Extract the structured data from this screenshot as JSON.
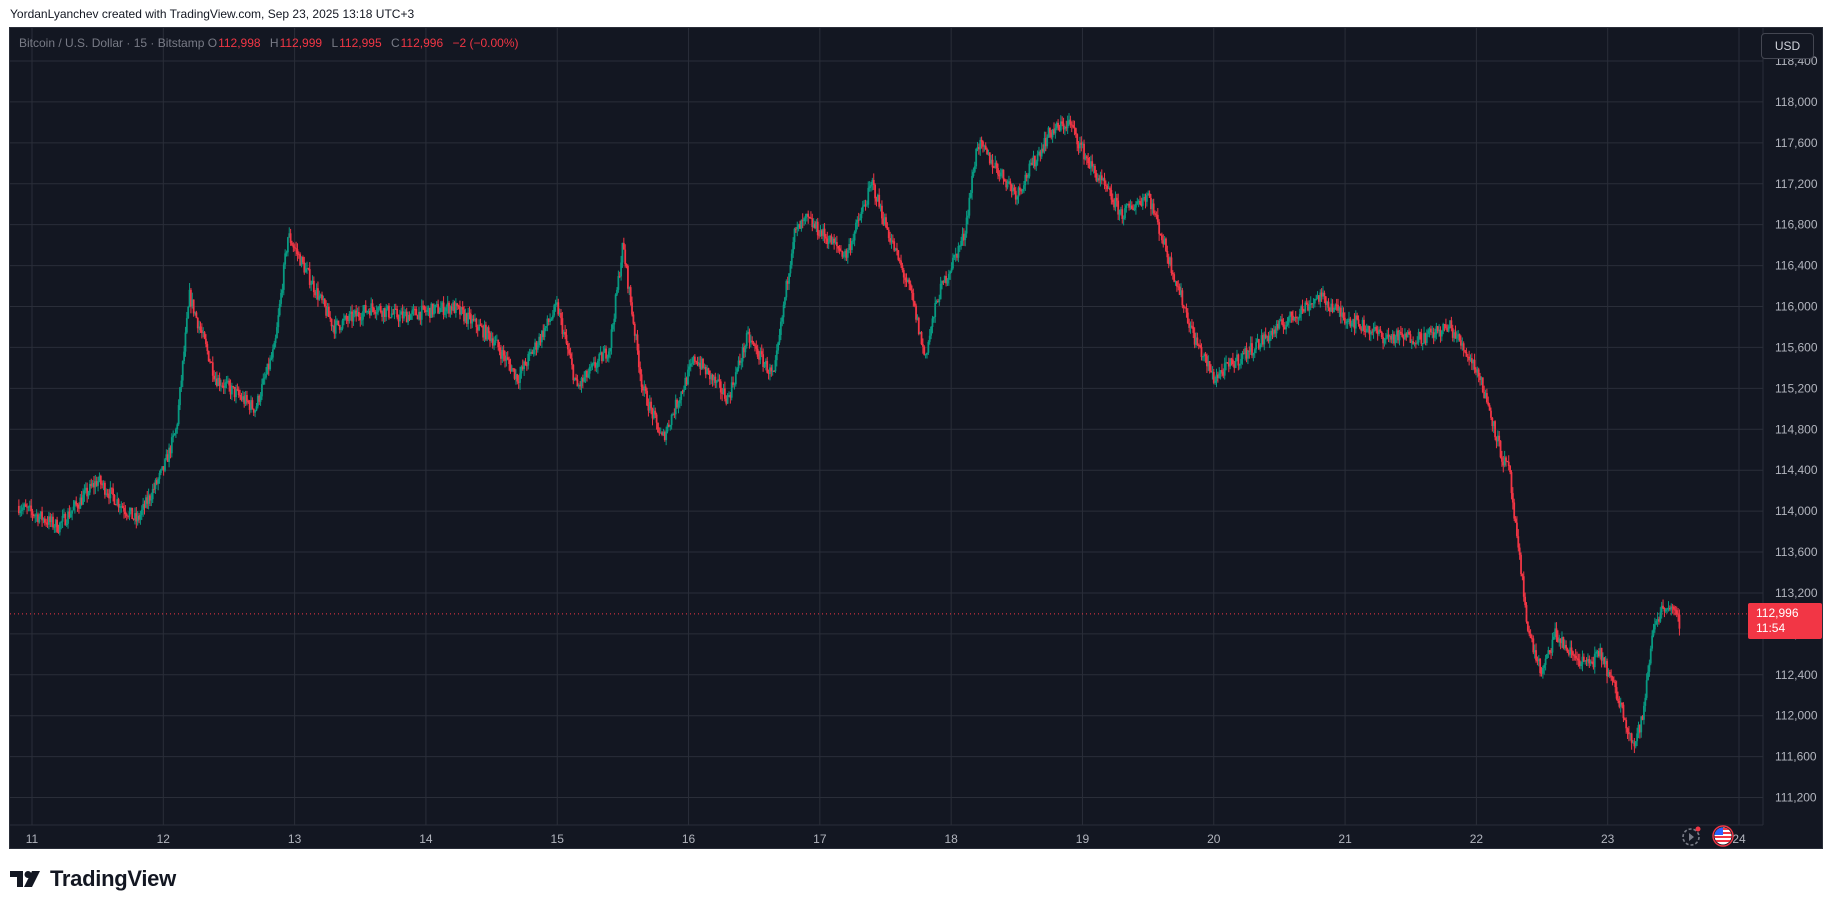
{
  "header": {
    "credit": "YordanLyanchev created with TradingView.com, Sep 23, 2025 13:18 UTC+3"
  },
  "legend": {
    "symbol": "Bitcoin / U.S. Dollar · 15 · Bitstamp",
    "o_label": "O",
    "o_value": "112,998",
    "h_label": "H",
    "h_value": "112,999",
    "l_label": "L",
    "l_value": "112,995",
    "c_label": "C",
    "c_value": "112,996",
    "change": "−2 (−0.00%)"
  },
  "currency": "USD",
  "price_tag": {
    "price": "112,996",
    "countdown": "11:54"
  },
  "brand": "TradingView",
  "icons": [
    "replay-icon",
    "us-flag-icon",
    "tv-logo-icon"
  ],
  "colors": {
    "up": "#089981",
    "down": "#f23645",
    "background": "#131722",
    "grid": "#2a2e39"
  },
  "chart_data": {
    "type": "candlestick",
    "ylim": [
      111000,
      118400
    ],
    "y_ticks": [
      111200,
      111600,
      112000,
      112400,
      112800,
      113200,
      113600,
      114000,
      114400,
      114800,
      115200,
      115600,
      116000,
      116400,
      116800,
      117200,
      117600,
      118000,
      118400
    ],
    "y_tick_labels": [
      "111,200",
      "111,600",
      "112,000",
      "112,400",
      "112,800",
      "113,200",
      "113,600",
      "114,000",
      "114,400",
      "114,800",
      "115,200",
      "115,600",
      "116,000",
      "116,400",
      "116,800",
      "117,200",
      "117,600",
      "118,000",
      "118,400"
    ],
    "x_ticks": [
      "11",
      "12",
      "13",
      "14",
      "15",
      "16",
      "17",
      "18",
      "19",
      "20",
      "21",
      "22",
      "23",
      "24"
    ],
    "xlim": [
      10.9,
      24.1
    ],
    "last_price": 112996,
    "series": [
      {
        "x": [
          10.9,
          11.2,
          11.5,
          11.8,
          12.0,
          12.1,
          12.2,
          12.4,
          12.7,
          12.85,
          12.95,
          13.3,
          13.6,
          13.8,
          14.2,
          14.5,
          14.7,
          15.0,
          15.15,
          15.4,
          15.5,
          15.65,
          15.8,
          16.05,
          16.3,
          16.45,
          16.65,
          16.8,
          16.9,
          17.2,
          17.4,
          17.5,
          17.7,
          17.8,
          17.9,
          18.1,
          18.2,
          18.5,
          18.75,
          18.9,
          19.05,
          19.3,
          19.5,
          19.65,
          19.85,
          20.0,
          20.3,
          20.6,
          20.8,
          21.0,
          21.3,
          21.6,
          21.8,
          22.0,
          22.1,
          22.2,
          22.25,
          22.3,
          22.4,
          22.5,
          22.6,
          22.72,
          22.85,
          22.95,
          23.1,
          23.2,
          23.27,
          23.35,
          23.45,
          23.55
        ],
        "close": [
          114050,
          113850,
          114300,
          113900,
          114400,
          114800,
          116100,
          115300,
          115000,
          115600,
          116700,
          115800,
          116000,
          115900,
          116000,
          115700,
          115300,
          116000,
          115200,
          115600,
          116600,
          115200,
          114700,
          115500,
          115100,
          115700,
          115300,
          116700,
          116850,
          116500,
          117200,
          116800,
          116100,
          115500,
          116100,
          116700,
          117600,
          117100,
          117700,
          117800,
          117400,
          116900,
          117100,
          116500,
          115700,
          115300,
          115600,
          115900,
          116100,
          115900,
          115700,
          115700,
          115800,
          115400,
          115000,
          114500,
          114400,
          113800,
          112800,
          112400,
          112800,
          112600,
          112500,
          112600,
          112100,
          111700,
          112000,
          112900,
          113100,
          112900
        ]
      }
    ]
  }
}
